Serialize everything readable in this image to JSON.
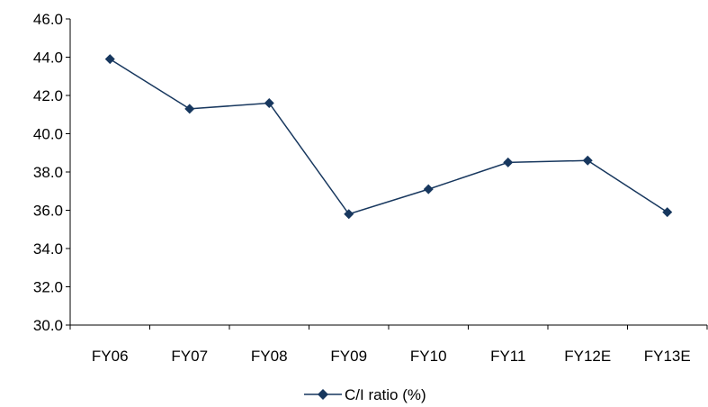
{
  "chart_data": {
    "type": "line",
    "categories": [
      "FY06",
      "FY07",
      "FY08",
      "FY09",
      "FY10",
      "FY11",
      "FY12E",
      "FY13E"
    ],
    "series": [
      {
        "name": "C/I ratio (%)",
        "values": [
          43.9,
          41.3,
          41.6,
          35.8,
          37.1,
          38.5,
          38.6,
          35.9
        ],
        "color": "#17375E",
        "marker": "diamond"
      }
    ],
    "ylim": [
      30.0,
      46.0
    ],
    "yticks": [
      "30.0",
      "32.0",
      "34.0",
      "36.0",
      "38.0",
      "40.0",
      "42.0",
      "44.0",
      "46.0"
    ],
    "grid": false,
    "legend_position": "bottom-center"
  }
}
